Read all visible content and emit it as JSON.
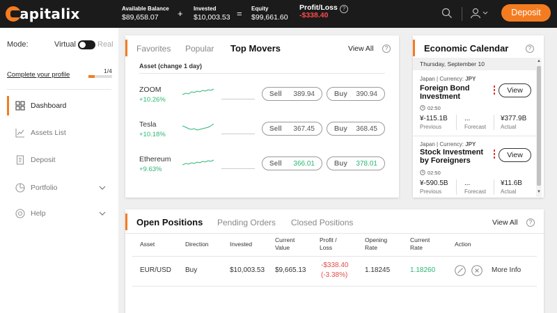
{
  "brand": {
    "logo_text": "apitalix",
    "accent": "#f47c20"
  },
  "header": {
    "available_balance_label": "Available Balance",
    "available_balance_value": "$89,658.07",
    "plus": "+",
    "invested_label": "Invested",
    "invested_value": "$10,003.53",
    "equals": "=",
    "equity_label": "Equity",
    "equity_value": "$99,661.60",
    "profit_loss_label": "Profit/Loss",
    "profit_loss_value": "-$338.40",
    "help": "?",
    "deposit_label": "Deposit"
  },
  "sidebar": {
    "mode_label": "Mode:",
    "mode_virtual": "Virtual",
    "mode_real": "Real",
    "complete_profile": "Complete your profile",
    "profile_progress_text": "1/4",
    "profile_progress_fraction": 0.25,
    "nav": [
      {
        "label": "Dashboard",
        "icon": "dashboard-icon",
        "active": true
      },
      {
        "label": "Assets List",
        "icon": "chart-icon"
      },
      {
        "label": "Deposit",
        "icon": "deposit-icon"
      },
      {
        "label": "Portfolio",
        "icon": "portfolio-icon"
      },
      {
        "label": "Help",
        "icon": "help-icon"
      }
    ]
  },
  "movers": {
    "tabs": [
      "Favorites",
      "Popular",
      "Top Movers"
    ],
    "active_tab": "Top Movers",
    "view_all": "View All",
    "help": "?",
    "subheader": "Asset (change 1 day)",
    "rows": [
      {
        "name": "ZOOM",
        "change": "+10.26%",
        "sell_label": "Sell",
        "sell": "389.94",
        "buy_label": "Buy",
        "buy": "390.94"
      },
      {
        "name": "Tesla",
        "change": "+10.18%",
        "sell_label": "Sell",
        "sell": "367.45",
        "buy_label": "Buy",
        "buy": "368.45"
      },
      {
        "name": "Ethereum",
        "change": "+9.63%",
        "sell_label": "Sell",
        "sell": "366.01",
        "buy_label": "Buy",
        "buy": "378.01"
      }
    ]
  },
  "calendar": {
    "title": "Economic Calendar",
    "help": "?",
    "date": "Thursday, September 10",
    "events": [
      {
        "meta_prefix": "Japan | Currency: ",
        "currency": "JPY",
        "title": "Foreign Bond Investment",
        "time": "02:50",
        "previous": "¥-115.1B",
        "forecast": "...",
        "actual": "¥377.9B",
        "previous_label": "Previous",
        "forecast_label": "Forecast",
        "actual_label": "Actual",
        "view_label": "View"
      },
      {
        "meta_prefix": "Japan | Currency: ",
        "currency": "JPY",
        "title": "Stock Investment by Foreigners",
        "time": "02:50",
        "previous": "¥-590.5B",
        "forecast": "...",
        "actual": "¥11.6B",
        "previous_label": "Previous",
        "forecast_label": "Forecast",
        "actual_label": "Actual",
        "view_label": "View"
      }
    ]
  },
  "positions": {
    "tabs": [
      "Open Positions",
      "Pending Orders",
      "Closed Positions"
    ],
    "active_tab": "Open Positions",
    "view_all": "View All",
    "help": "?",
    "columns": [
      "Asset",
      "Direction",
      "Invested",
      "Current Value",
      "Profit / Loss",
      "Opening Rate",
      "Current Rate",
      "Action"
    ],
    "rows": [
      {
        "asset": "EUR/USD",
        "direction": "Buy",
        "invested": "$10,003.53",
        "current_value": "$9,665.13",
        "profit_loss": "-$338.40",
        "profit_loss_pct": "(-3.38%)",
        "opening_rate": "1.18245",
        "current_rate": "1.18260",
        "more_info": "More Info"
      }
    ]
  }
}
